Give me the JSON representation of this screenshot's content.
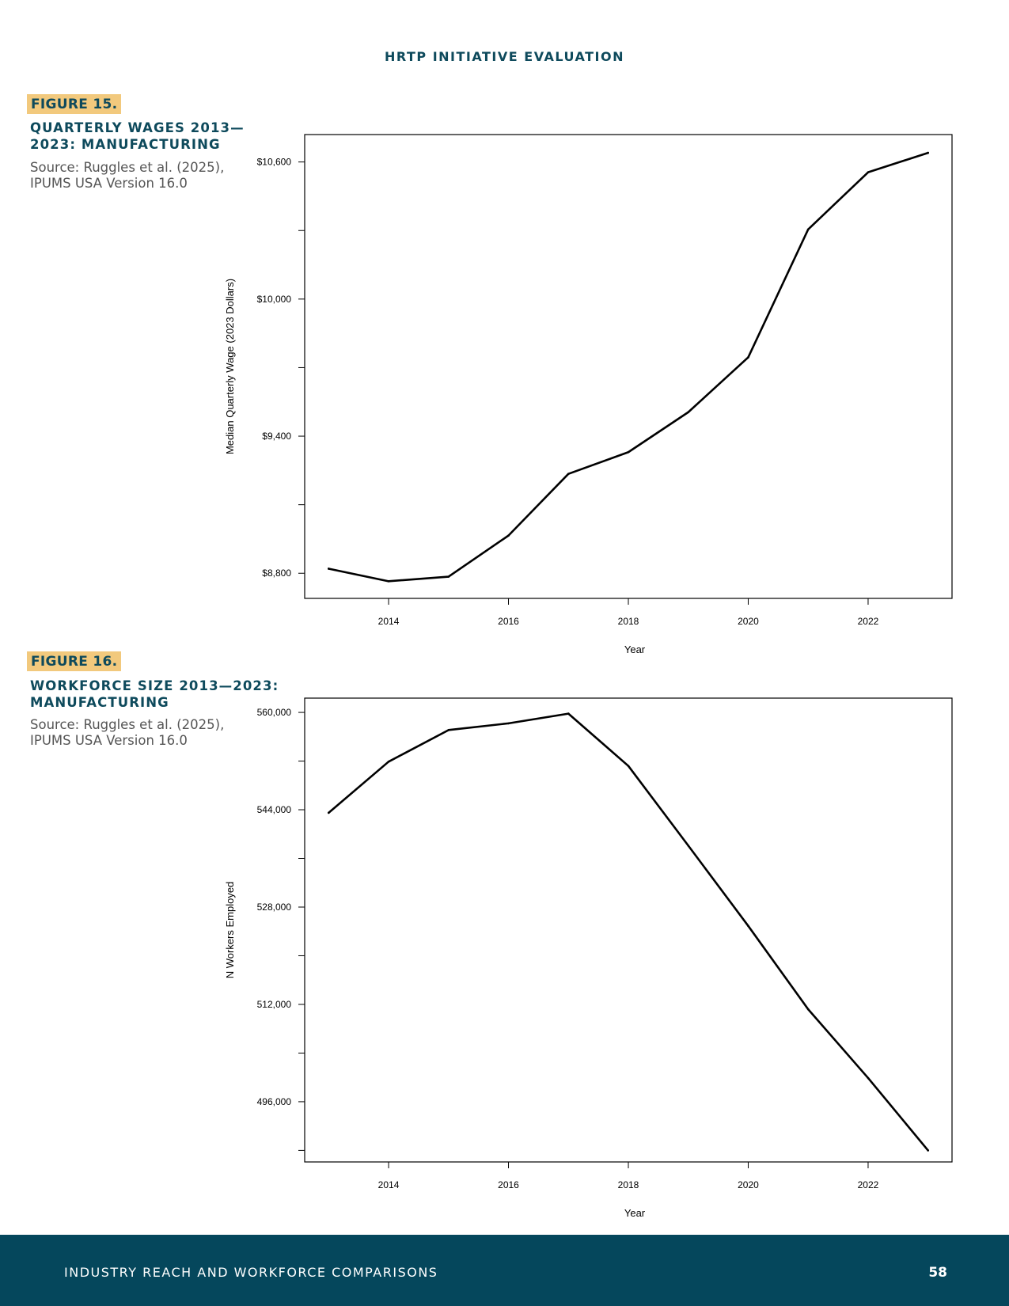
{
  "header": {
    "running_title": "HRTP INITIATIVE EVALUATION"
  },
  "figures": [
    {
      "tag": "FIGURE 15.",
      "title": "QUARTERLY WAGES 2013—2023: MANUFACTURING",
      "source": "Source: Ruggles et al. (2025), IPUMS USA Version 16.0"
    },
    {
      "tag": "FIGURE 16.",
      "title": "WORKFORCE SIZE 2013—2023: MANUFACTURING",
      "source": "Source: Ruggles et al. (2025), IPUMS USA Version 16.0"
    }
  ],
  "chart_data": [
    {
      "type": "line",
      "title": "",
      "xlabel": "Year",
      "ylabel": "Median Quarterly Wage (2023 Dollars)",
      "x": [
        2013,
        2014,
        2015,
        2016,
        2017,
        2018,
        2019,
        2020,
        2021,
        2022,
        2023
      ],
      "series": [
        {
          "values": [
            8820,
            8765,
            8785,
            8965,
            9235,
            9330,
            9505,
            9745,
            10305,
            10555,
            10640
          ]
        }
      ],
      "x_ticks": [
        2014,
        2016,
        2018,
        2020,
        2022
      ],
      "x_tick_labels": [
        "2014",
        "2016",
        "2018",
        "2020",
        "2022"
      ],
      "y_ticks": [
        8800,
        9100,
        9400,
        9700,
        10000,
        10300,
        10600
      ],
      "y_tick_labels": [
        "$8,800",
        "",
        "$9,400",
        "",
        "$10,000",
        "",
        "$10,600"
      ],
      "xlim": [
        2012.6,
        2023.4
      ],
      "ylim": [
        8690,
        10720
      ],
      "grid": false,
      "line_color": "#000000"
    },
    {
      "type": "line",
      "title": "",
      "xlabel": "Year",
      "ylabel": "N Workers Employed",
      "x": [
        2013,
        2014,
        2015,
        2016,
        2017,
        2018,
        2019,
        2020,
        2021,
        2022,
        2023
      ],
      "series": [
        {
          "values": [
            543500,
            551900,
            557100,
            558200,
            559800,
            551200,
            538100,
            524900,
            511200,
            499900,
            488000
          ]
        }
      ],
      "x_ticks": [
        2014,
        2016,
        2018,
        2020,
        2022
      ],
      "x_tick_labels": [
        "2014",
        "2016",
        "2018",
        "2020",
        "2022"
      ],
      "y_ticks": [
        488000,
        496000,
        504000,
        512000,
        520000,
        528000,
        536000,
        544000,
        552000,
        560000
      ],
      "y_tick_labels": [
        "",
        "496,000",
        "",
        "512,000",
        "",
        "528,000",
        "",
        "544,000",
        "",
        "560,000"
      ],
      "xlim": [
        2012.6,
        2023.4
      ],
      "ylim": [
        486100,
        562350
      ],
      "grid": false,
      "line_color": "#000000"
    }
  ],
  "footer": {
    "section_title": "INDUSTRY REACH AND WORKFORCE COMPARISONS",
    "page_number": "58"
  }
}
